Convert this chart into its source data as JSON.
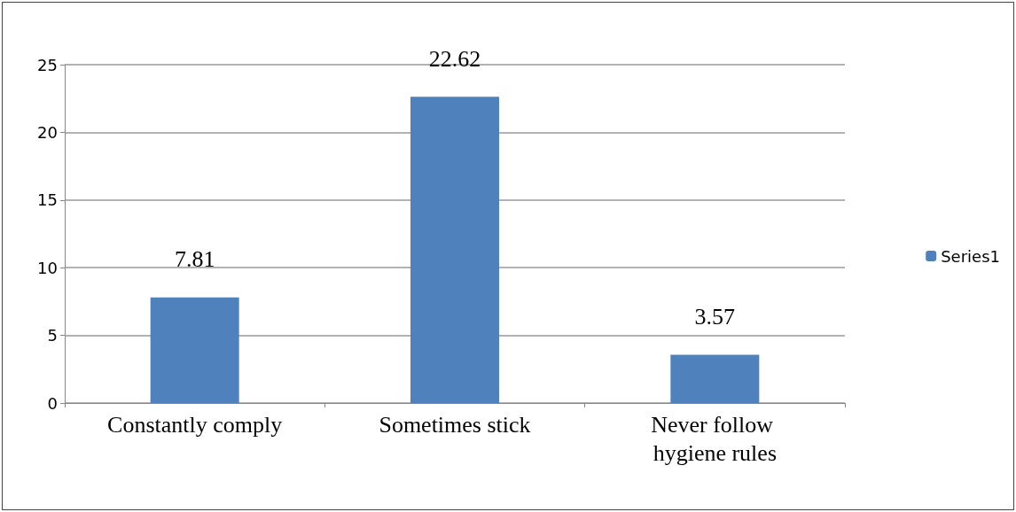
{
  "chart_data": {
    "type": "bar",
    "categories": [
      "Constantly comply",
      "Sometimes stick",
      "Never follow hygiene rules"
    ],
    "series": [
      {
        "name": "Series1",
        "color": "#4f81bd",
        "values": [
          7.81,
          22.62,
          3.57
        ]
      }
    ],
    "ylim": [
      0,
      25
    ],
    "yticks": [
      0,
      5,
      10,
      15,
      20,
      25
    ],
    "grid": "y",
    "legend": "right",
    "data_labels": true
  }
}
